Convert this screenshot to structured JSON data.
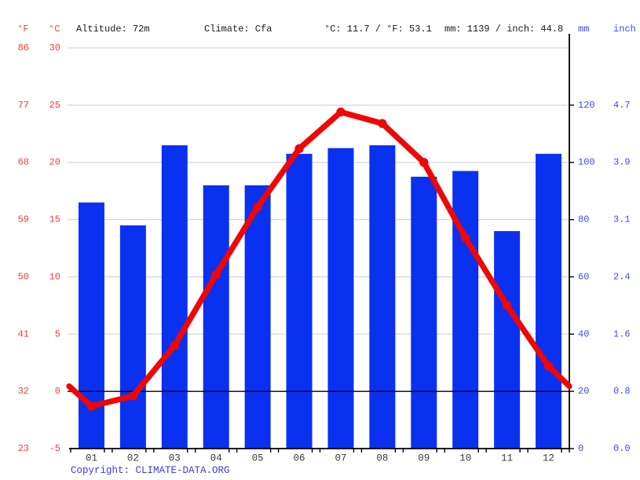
{
  "header": {
    "fahrenheit_title": "°F",
    "celsius_title": "°C",
    "altitude": "Altitude: 72m",
    "climate": "Climate: Cfa",
    "temperature_summary": "°C: 11.7 / °F: 53.1",
    "precipitation_summary": "mm: 1139 / inch: 44.8",
    "mm_title": "mm",
    "inch_title": "inch"
  },
  "footer": {
    "copyright_label": "Copyright: ",
    "copyright_link": "CLIMATE-DATA.ORG"
  },
  "colors": {
    "bar": "#0a31f0",
    "line": "#f10505",
    "left_axis_text": "#ff3b3b",
    "right_axis_text": "#3b4bfd",
    "grid": "#d6d6d6",
    "axis": "#000000",
    "month_text": "#3a3a3a",
    "copyright_text": "#3c3cdb"
  },
  "chart_data": {
    "type": "bar+line climate chart (climograph)",
    "categories": [
      "01",
      "02",
      "03",
      "04",
      "05",
      "06",
      "07",
      "08",
      "09",
      "10",
      "11",
      "12"
    ],
    "series": [
      {
        "name": "Precipitation",
        "type": "bar",
        "unit": "mm",
        "values": [
          86,
          78,
          106,
          92,
          92,
          103,
          105,
          106,
          95,
          97,
          76,
          103
        ]
      },
      {
        "name": "Average temperature",
        "type": "line",
        "unit": "°C",
        "values": [
          -1.3,
          -0.4,
          4.0,
          10.2,
          16.1,
          21.2,
          24.4,
          23.4,
          20.0,
          13.4,
          7.5,
          2.2
        ],
        "edge_value": 0.45
      }
    ],
    "left_axis": {
      "fahrenheit_ticks": [
        86,
        77,
        68,
        59,
        50,
        41,
        32,
        23
      ],
      "celsius_ticks": [
        30,
        25,
        20,
        15,
        10,
        5,
        0,
        -5
      ],
      "range_celsius": [
        -5,
        30
      ]
    },
    "right_axis": {
      "mm_ticks": [
        120,
        100,
        80,
        60,
        40,
        20,
        0
      ],
      "inch_ticks": [
        "4.7",
        "3.9",
        "3.1",
        "2.4",
        "1.6",
        "0.8",
        "0.0"
      ],
      "range_mm": [
        0,
        140
      ]
    },
    "grid": "horizontal gray gridlines every 5°C / 20mm; 0°C line drawn black",
    "legend": "none",
    "annotations": {
      "annual_mean_temp_c": 11.7,
      "annual_mean_temp_f": 53.1,
      "annual_precip_mm": 1139,
      "annual_precip_inch": 44.8
    }
  }
}
